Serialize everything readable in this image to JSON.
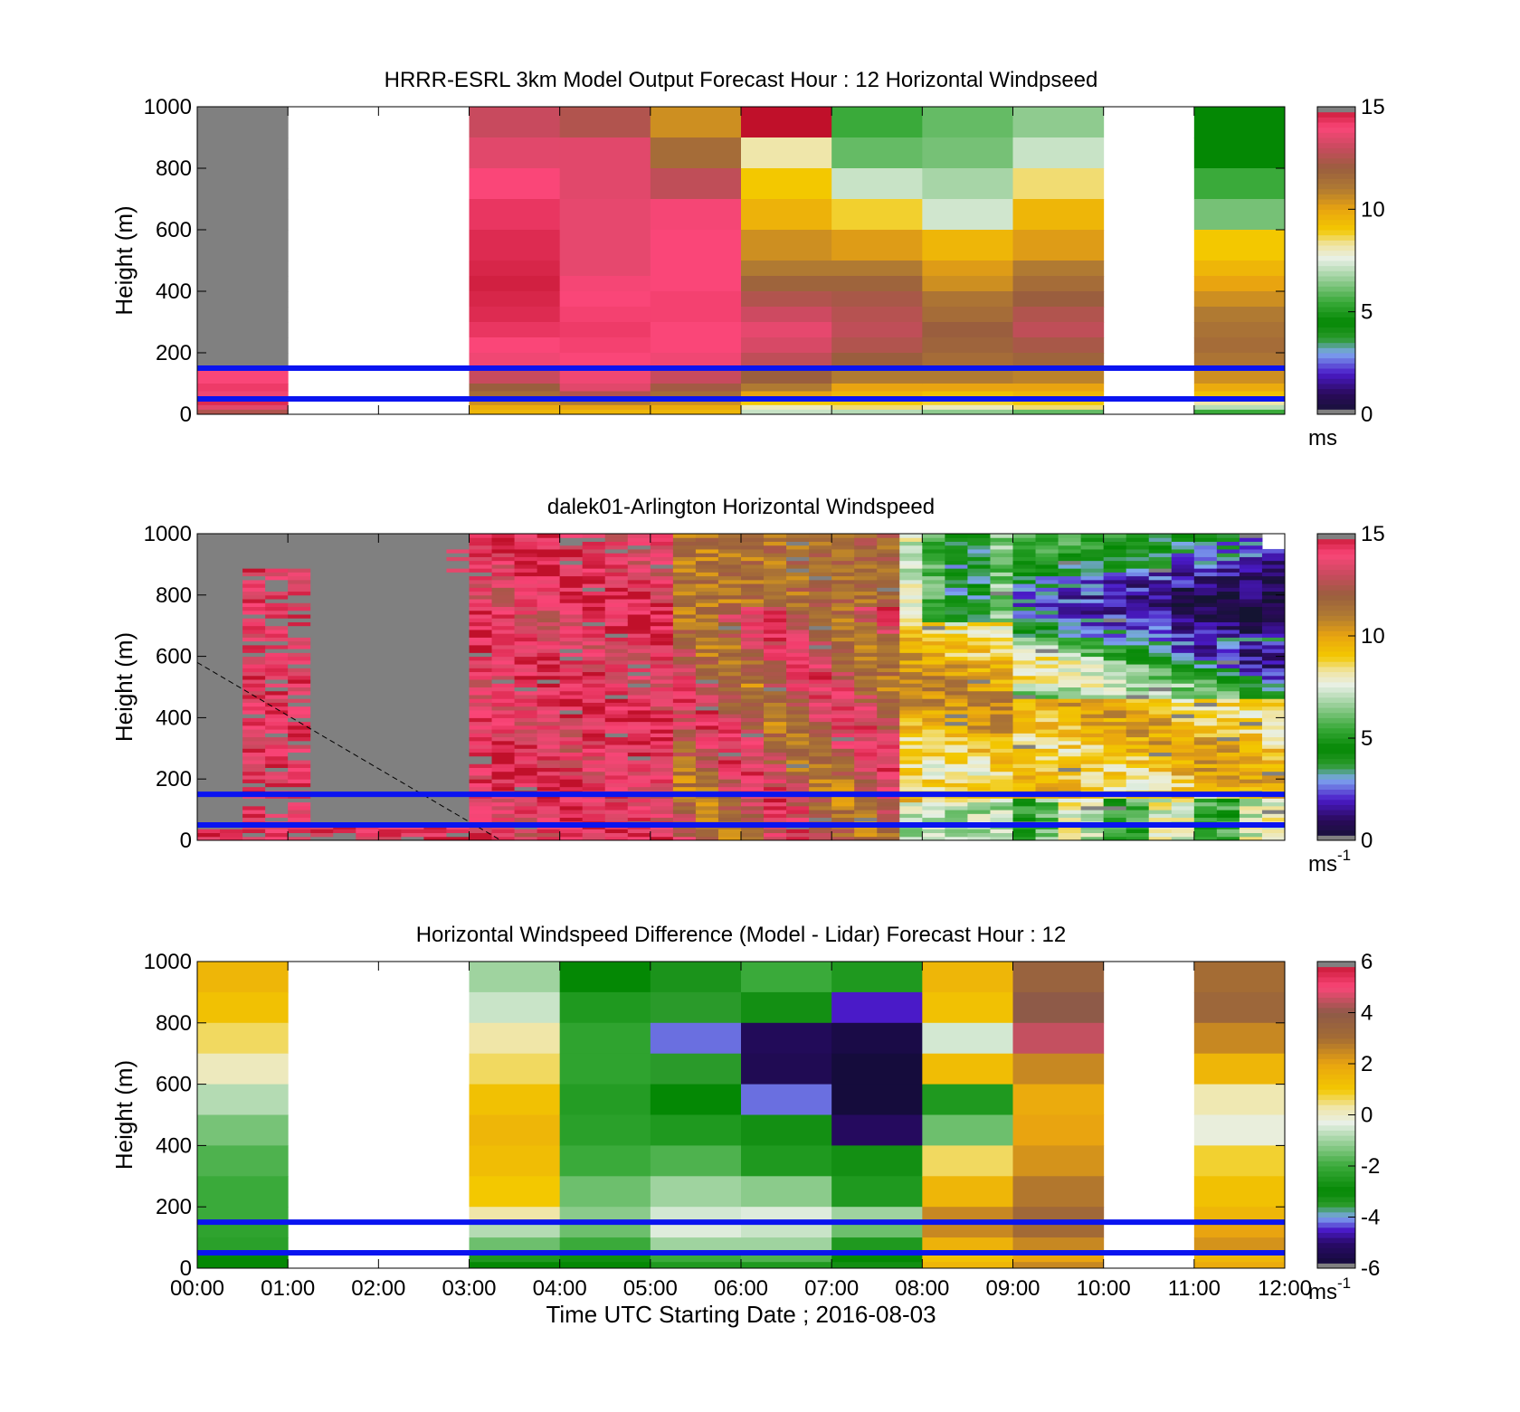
{
  "chart_data": [
    {
      "type": "heatmap",
      "title": "HRRR-ESRL 3km Model Output   Forecast Hour : 12 Horizontal Windpseed",
      "ylabel": "Height (m)",
      "xlabel": "",
      "xlim": [
        0,
        12
      ],
      "ylim": [
        0,
        1000
      ],
      "yticks": [
        "0",
        "200",
        "400",
        "600",
        "800",
        "1000"
      ],
      "xticks": [
        "00:00",
        "01:00",
        "02:00",
        "03:00",
        "04:00",
        "05:00",
        "06:00",
        "07:00",
        "08:00",
        "09:00",
        "10:00",
        "11:00",
        "12:00"
      ],
      "show_xtick_labels": false,
      "colorbar": {
        "palette": "speed",
        "min": 0,
        "max": 15,
        "ticks": [
          "0",
          "5",
          "10",
          "15"
        ],
        "unit": "ms",
        "unit_sup": ""
      },
      "reference_lines_m": [
        50,
        150
      ],
      "heights_m": [
        1000,
        900,
        800,
        700,
        600,
        500,
        450,
        400,
        350,
        300,
        250,
        200,
        150,
        100,
        75,
        50,
        30,
        15
      ],
      "columns": [
        {
          "hour": 0,
          "values": [
            null,
            null,
            null,
            null,
            null,
            null,
            null,
            null,
            null,
            null,
            null,
            null,
            14,
            14.2,
            13.8,
            14.5,
            13.5,
            12.5
          ]
        },
        {
          "hour": 1,
          "values": null
        },
        {
          "hour": 2,
          "values": null
        },
        {
          "hour": 3,
          "values": [
            13,
            13.5,
            14,
            14.3,
            14.5,
            14.6,
            14.7,
            14.6,
            14.5,
            14.3,
            14,
            13.8,
            13,
            12,
            11.5,
            10.5,
            9.8,
            9.5
          ]
        },
        {
          "hour": 4,
          "values": [
            12.5,
            13.5,
            13.5,
            13.6,
            13.6,
            13.6,
            13.9,
            14,
            14.1,
            14.2,
            14.1,
            14,
            13.8,
            13.5,
            12.5,
            11,
            10,
            9.5
          ]
        },
        {
          "hour": 5,
          "values": [
            10.5,
            11.5,
            12.8,
            13.9,
            14,
            14,
            14,
            14.1,
            14.1,
            14,
            14,
            13.8,
            13,
            12.2,
            11.5,
            10.5,
            9.8,
            9.5
          ]
        },
        {
          "hour": 6,
          "values": [
            15,
            8.2,
            9,
            9.6,
            10.5,
            11,
            11.8,
            12.5,
            13.1,
            13.6,
            13.3,
            12.8,
            12,
            11,
            10,
            9,
            8,
            7.2
          ]
        },
        {
          "hour": 7,
          "values": [
            5.5,
            6,
            7.2,
            8.8,
            10.2,
            11,
            11.8,
            12.3,
            12.6,
            12.8,
            12.5,
            12,
            11,
            10,
            9.5,
            9,
            8.5,
            7
          ]
        },
        {
          "hour": 8,
          "values": [
            6,
            6.2,
            6.8,
            7.3,
            9.5,
            10.2,
            10.5,
            11.2,
            11.5,
            12,
            11.8,
            11.5,
            11,
            10,
            9.2,
            8.8,
            8,
            6.5
          ]
        },
        {
          "hour": 9,
          "values": [
            6.5,
            7.2,
            8.5,
            9.5,
            10.2,
            11,
            11.5,
            12,
            12.5,
            12.8,
            12.3,
            11.8,
            10.8,
            10,
            9.5,
            9,
            8.5,
            6
          ]
        },
        {
          "hour": 10,
          "values": null
        },
        {
          "hour": 11,
          "values": [
            4.5,
            4.5,
            5.5,
            6.2,
            9,
            9.5,
            10,
            10.5,
            11,
            11.3,
            11.5,
            11.2,
            10.5,
            9.8,
            9.2,
            8.2,
            7,
            5.5
          ]
        }
      ]
    },
    {
      "type": "heatmap",
      "title": "dalek01-Arlington  Horizontal Windspeed",
      "ylabel": "Height (m)",
      "xlabel": "",
      "xlim": [
        0,
        12
      ],
      "ylim": [
        0,
        1000
      ],
      "yticks": [
        "0",
        "200",
        "400",
        "600",
        "800",
        "1000"
      ],
      "xticks": [
        "00:00",
        "01:00",
        "02:00",
        "03:00",
        "04:00",
        "05:00",
        "06:00",
        "07:00",
        "08:00",
        "09:00",
        "10:00",
        "11:00",
        "12:00"
      ],
      "show_xtick_labels": false,
      "colorbar": {
        "palette": "speed",
        "min": 0,
        "max": 15,
        "ticks": [
          "0",
          "5",
          "10",
          "15"
        ],
        "unit": "ms",
        "unit_sup": "-1"
      },
      "reference_lines_m": [
        50,
        150
      ],
      "dashed_line": {
        "from": [
          0,
          580
        ],
        "to": [
          3.35,
          0
        ]
      },
      "time_step_hours": 0.25,
      "time_bins": 48,
      "lowest_gate_m": 0,
      "gate_spacing_m": 12.5,
      "segments": [
        {
          "from_hour": 0,
          "to_hour": 3,
          "regime": "mostly missing above 100 m; scattered 12-15 values, strongest near 00:45-01:15"
        },
        {
          "from_hour": 3,
          "to_hour": 5.2,
          "values_approx": [
            13,
            15
          ]
        },
        {
          "from_hour": 5.2,
          "to_hour": 7.8,
          "values_approx": [
            10,
            14
          ]
        },
        {
          "from_hour": 7.8,
          "to_hour": 9,
          "values_approx": [
            5,
            11
          ]
        },
        {
          "from_hour": 9,
          "to_hour": 12,
          "values_approx": [
            0.5,
            10
          ]
        }
      ]
    },
    {
      "type": "heatmap",
      "title": "Horizontal Windspeed Difference (Model - Lidar) Forecast Hour : 12",
      "ylabel": "Height (m)",
      "xlabel": "Time UTC  Starting Date ; 2016-08-03",
      "xlim": [
        0,
        12
      ],
      "ylim": [
        0,
        1000
      ],
      "yticks": [
        "0",
        "200",
        "400",
        "600",
        "800",
        "1000"
      ],
      "xticks": [
        "00:00",
        "01:00",
        "02:00",
        "03:00",
        "04:00",
        "05:00",
        "06:00",
        "07:00",
        "08:00",
        "09:00",
        "10:00",
        "11:00",
        "12:00"
      ],
      "show_xtick_labels": true,
      "colorbar": {
        "palette": "diff",
        "min": -6,
        "max": 6,
        "ticks": [
          "-6",
          "-4",
          "-2",
          "0",
          "2",
          "4",
          "6"
        ],
        "unit": "ms",
        "unit_sup": "-1"
      },
      "reference_lines_m": [
        50,
        150
      ],
      "heights_m": [
        1000,
        900,
        800,
        700,
        600,
        500,
        400,
        300,
        200,
        150,
        100,
        50,
        20
      ],
      "columns": [
        {
          "hour": 0,
          "values": [
            1.5,
            1.2,
            0.6,
            0.1,
            -0.8,
            -1.4,
            -1.8,
            -2,
            -2,
            -2.2,
            -2.3,
            -3,
            -3
          ]
        },
        {
          "hour": 1,
          "values": null
        },
        {
          "hour": 2,
          "values": null
        },
        {
          "hour": 3,
          "values": [
            -1,
            -0.6,
            0.3,
            0.6,
            1.2,
            1.5,
            1.3,
            1,
            0.3,
            -0.8,
            -1.5,
            -2.5,
            -3
          ]
        },
        {
          "hour": 4,
          "values": [
            -3,
            -2.5,
            -2.2,
            -2.2,
            -2.4,
            -2.3,
            -2,
            -1.5,
            -1.2,
            -1.5,
            -2,
            -2.8,
            -3
          ]
        },
        {
          "hour": 5,
          "values": [
            -3.3,
            -3.5,
            -4.2,
            -3.5,
            -3,
            -2.5,
            -1.8,
            -1,
            -0.5,
            -0.4,
            -1,
            -2,
            -2.5
          ]
        },
        {
          "hour": 6,
          "values": [
            -2,
            -3.2,
            -5.3,
            -5.4,
            -4.2,
            -3.2,
            -2.5,
            -1.2,
            -0.4,
            -0.6,
            -1,
            -1.8,
            -2.5
          ]
        },
        {
          "hour": 7,
          "values": [
            -2.5,
            -4.5,
            -5.6,
            -5.8,
            -5.8,
            -5.2,
            -3.2,
            -2.5,
            -1,
            -1.5,
            -2.5,
            -3,
            -3.2
          ]
        },
        {
          "hour": 8,
          "values": [
            1.5,
            1.2,
            -0.5,
            1.3,
            -2.5,
            -1.5,
            0.6,
            1.5,
            2.5,
            2.5,
            1.6,
            1.2,
            1.5
          ]
        },
        {
          "hour": 9,
          "values": [
            3.5,
            4,
            4.5,
            2.5,
            1.8,
            2,
            2.3,
            2.8,
            3.2,
            3.1,
            2.5,
            2,
            2.5
          ]
        },
        {
          "hour": 10,
          "values": null
        },
        {
          "hour": 11,
          "values": [
            3,
            3.3,
            2.5,
            1.5,
            0.2,
            -0.2,
            0.8,
            1.2,
            1.5,
            2,
            2.3,
            1.5,
            1.8
          ]
        }
      ]
    }
  ]
}
